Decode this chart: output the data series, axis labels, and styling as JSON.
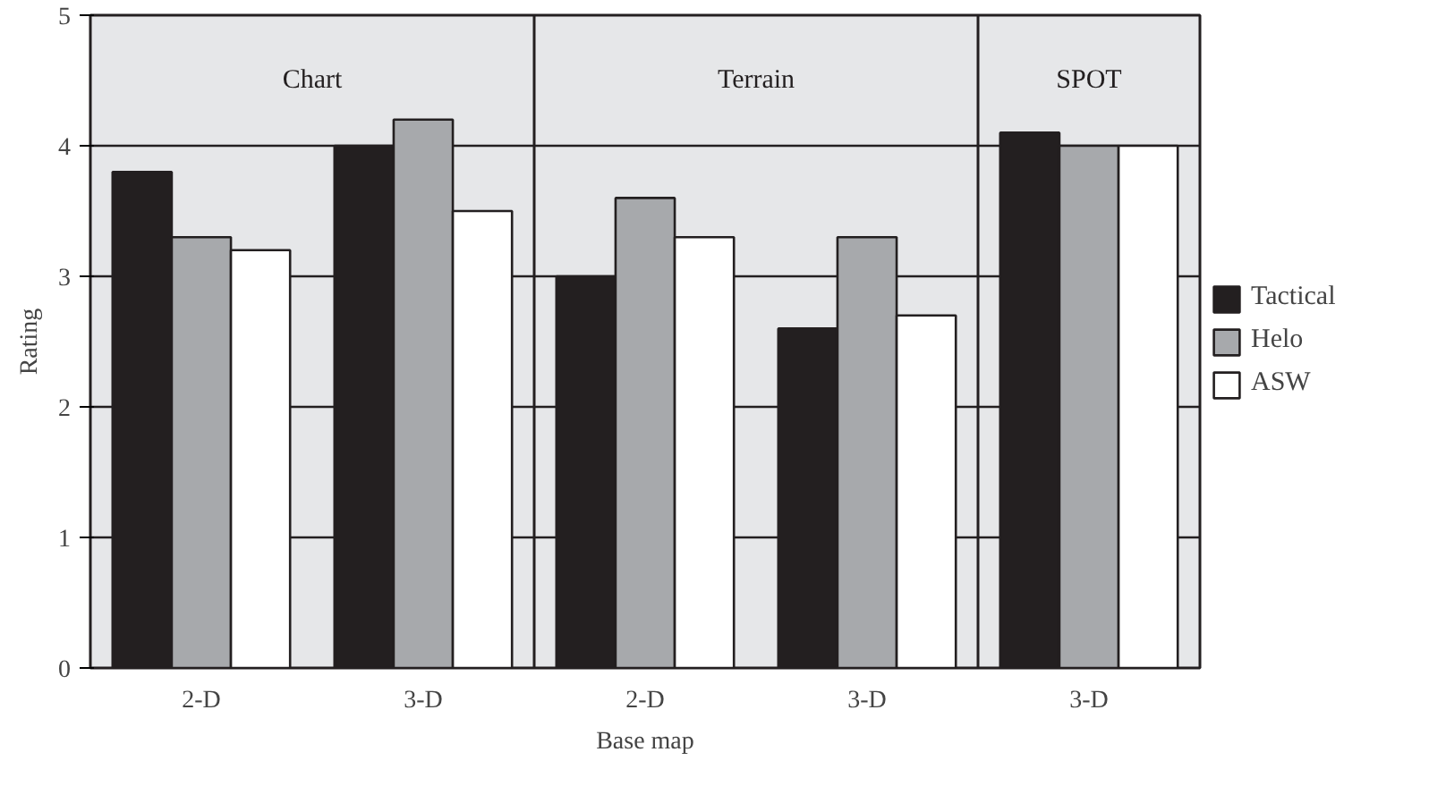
{
  "chart_data": {
    "type": "bar",
    "xlabel": "Base map",
    "ylabel": "Rating",
    "categories": [
      "2-D",
      "3-D",
      "2-D",
      "3-D",
      "3-D"
    ],
    "series": [
      {
        "name": "Tactical",
        "color": "#231f20",
        "values": [
          3.8,
          4.0,
          3.0,
          2.6,
          4.1
        ]
      },
      {
        "name": "Helo",
        "color": "#a7a9ac",
        "values": [
          3.3,
          4.2,
          3.6,
          3.3,
          4.0
        ]
      },
      {
        "name": "ASW",
        "color": "#ffffff",
        "values": [
          3.2,
          3.5,
          3.3,
          2.7,
          4.0
        ]
      }
    ],
    "ylim": [
      0,
      5
    ],
    "yticks": [
      0,
      1,
      2,
      3,
      4,
      5
    ],
    "grid": "y",
    "legend": "right",
    "annotations": [
      "Chart",
      "Terrain",
      "SPOT"
    ]
  }
}
